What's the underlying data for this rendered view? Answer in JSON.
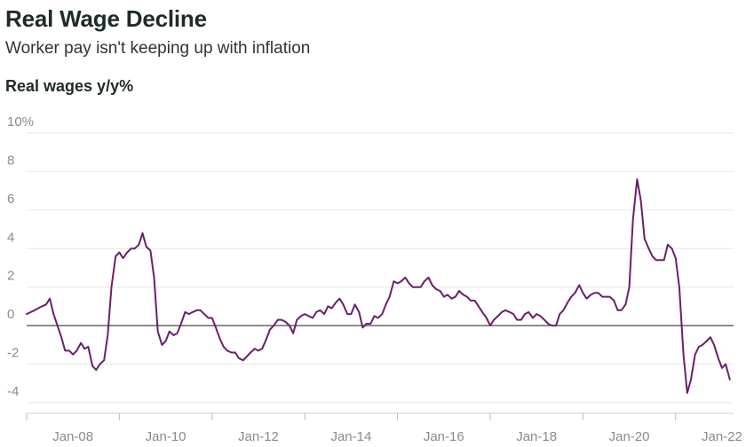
{
  "header": {
    "title": "Real Wage Decline",
    "subtitle": "Worker pay isn't keeping up with inflation",
    "ylabel": "Real wages y/y%"
  },
  "chart_data": {
    "type": "line",
    "title": "Real Wage Decline",
    "subtitle": "Worker pay isn't keeping up with inflation",
    "ylabel": "Real wages y/y%",
    "xlabel": "",
    "ylim": [
      -4,
      10
    ],
    "xlim": [
      2007.0,
      2022.25
    ],
    "yticks": [
      -4,
      -2,
      0,
      2,
      4,
      6,
      8,
      10
    ],
    "ytick_labels": [
      "-4",
      "-2",
      "0",
      "2",
      "4",
      "6",
      "8",
      "10%"
    ],
    "xticks": [
      2008,
      2010,
      2012,
      2014,
      2016,
      2018,
      2020,
      2022
    ],
    "xtick_labels": [
      "Jan-08",
      "Jan-10",
      "Jan-12",
      "Jan-14",
      "Jan-16",
      "Jan-18",
      "Jan-20",
      "Jan-22"
    ],
    "grid": true,
    "line_color": "#6b1f6b",
    "zero_line_color": "#666666",
    "series": [
      {
        "points": [
          [
            2007.0,
            0.6
          ],
          [
            2007.17,
            0.8
          ],
          [
            2007.33,
            1.0
          ],
          [
            2007.42,
            1.1
          ],
          [
            2007.5,
            1.4
          ],
          [
            2007.58,
            0.6
          ],
          [
            2007.75,
            -0.6
          ],
          [
            2007.83,
            -1.3
          ],
          [
            2007.92,
            -1.3
          ],
          [
            2008.0,
            -1.5
          ],
          [
            2008.08,
            -1.3
          ],
          [
            2008.17,
            -0.9
          ],
          [
            2008.25,
            -1.2
          ],
          [
            2008.33,
            -1.1
          ],
          [
            2008.42,
            -2.1
          ],
          [
            2008.5,
            -2.3
          ],
          [
            2008.58,
            -2.0
          ],
          [
            2008.67,
            -1.8
          ],
          [
            2008.75,
            -0.5
          ],
          [
            2008.83,
            2.0
          ],
          [
            2008.92,
            3.6
          ],
          [
            2009.0,
            3.8
          ],
          [
            2009.08,
            3.5
          ],
          [
            2009.17,
            3.8
          ],
          [
            2009.25,
            4.0
          ],
          [
            2009.33,
            4.0
          ],
          [
            2009.42,
            4.2
          ],
          [
            2009.5,
            4.8
          ],
          [
            2009.58,
            4.1
          ],
          [
            2009.67,
            3.9
          ],
          [
            2009.75,
            2.5
          ],
          [
            2009.83,
            -0.3
          ],
          [
            2009.92,
            -1.0
          ],
          [
            2010.0,
            -0.8
          ],
          [
            2010.08,
            -0.3
          ],
          [
            2010.17,
            -0.5
          ],
          [
            2010.25,
            -0.4
          ],
          [
            2010.33,
            0.1
          ],
          [
            2010.42,
            0.7
          ],
          [
            2010.5,
            0.6
          ],
          [
            2010.58,
            0.7
          ],
          [
            2010.67,
            0.8
          ],
          [
            2010.75,
            0.8
          ],
          [
            2010.83,
            0.6
          ],
          [
            2010.92,
            0.4
          ],
          [
            2011.0,
            0.4
          ],
          [
            2011.08,
            -0.1
          ],
          [
            2011.17,
            -0.7
          ],
          [
            2011.25,
            -1.1
          ],
          [
            2011.33,
            -1.3
          ],
          [
            2011.42,
            -1.4
          ],
          [
            2011.5,
            -1.4
          ],
          [
            2011.58,
            -1.7
          ],
          [
            2011.67,
            -1.8
          ],
          [
            2011.75,
            -1.6
          ],
          [
            2011.83,
            -1.4
          ],
          [
            2011.92,
            -1.2
          ],
          [
            2012.0,
            -1.3
          ],
          [
            2012.08,
            -1.2
          ],
          [
            2012.17,
            -0.7
          ],
          [
            2012.25,
            -0.2
          ],
          [
            2012.33,
            0.0
          ],
          [
            2012.42,
            0.3
          ],
          [
            2012.5,
            0.3
          ],
          [
            2012.58,
            0.2
          ],
          [
            2012.67,
            0.0
          ],
          [
            2012.75,
            -0.4
          ],
          [
            2012.83,
            0.3
          ],
          [
            2012.92,
            0.5
          ],
          [
            2013.0,
            0.6
          ],
          [
            2013.08,
            0.5
          ],
          [
            2013.17,
            0.4
          ],
          [
            2013.25,
            0.7
          ],
          [
            2013.33,
            0.8
          ],
          [
            2013.42,
            0.6
          ],
          [
            2013.5,
            1.0
          ],
          [
            2013.58,
            0.9
          ],
          [
            2013.67,
            1.2
          ],
          [
            2013.75,
            1.4
          ],
          [
            2013.83,
            1.1
          ],
          [
            2013.92,
            0.6
          ],
          [
            2014.0,
            0.6
          ],
          [
            2014.08,
            1.1
          ],
          [
            2014.17,
            0.7
          ],
          [
            2014.25,
            -0.1
          ],
          [
            2014.33,
            0.1
          ],
          [
            2014.42,
            0.1
          ],
          [
            2014.5,
            0.5
          ],
          [
            2014.58,
            0.4
          ],
          [
            2014.67,
            0.6
          ],
          [
            2014.75,
            1.1
          ],
          [
            2014.83,
            1.5
          ],
          [
            2014.92,
            2.3
          ],
          [
            2015.0,
            2.2
          ],
          [
            2015.08,
            2.3
          ],
          [
            2015.17,
            2.5
          ],
          [
            2015.25,
            2.2
          ],
          [
            2015.33,
            2.0
          ],
          [
            2015.42,
            2.0
          ],
          [
            2015.5,
            2.0
          ],
          [
            2015.58,
            2.3
          ],
          [
            2015.67,
            2.5
          ],
          [
            2015.75,
            2.1
          ],
          [
            2015.83,
            1.9
          ],
          [
            2015.92,
            1.8
          ],
          [
            2016.0,
            1.5
          ],
          [
            2016.08,
            1.6
          ],
          [
            2016.17,
            1.4
          ],
          [
            2016.25,
            1.5
          ],
          [
            2016.33,
            1.8
          ],
          [
            2016.42,
            1.6
          ],
          [
            2016.5,
            1.5
          ],
          [
            2016.58,
            1.3
          ],
          [
            2016.67,
            1.3
          ],
          [
            2016.75,
            1.0
          ],
          [
            2016.83,
            0.7
          ],
          [
            2016.92,
            0.4
          ],
          [
            2017.0,
            0.0
          ],
          [
            2017.08,
            0.3
          ],
          [
            2017.17,
            0.5
          ],
          [
            2017.25,
            0.7
          ],
          [
            2017.33,
            0.8
          ],
          [
            2017.42,
            0.7
          ],
          [
            2017.5,
            0.6
          ],
          [
            2017.58,
            0.3
          ],
          [
            2017.67,
            0.3
          ],
          [
            2017.75,
            0.6
          ],
          [
            2017.83,
            0.7
          ],
          [
            2017.92,
            0.4
          ],
          [
            2018.0,
            0.6
          ],
          [
            2018.08,
            0.5
          ],
          [
            2018.17,
            0.3
          ],
          [
            2018.25,
            0.1
          ],
          [
            2018.33,
            0.0
          ],
          [
            2018.42,
            0.0
          ],
          [
            2018.5,
            0.6
          ],
          [
            2018.58,
            0.8
          ],
          [
            2018.67,
            1.2
          ],
          [
            2018.75,
            1.5
          ],
          [
            2018.83,
            1.7
          ],
          [
            2018.92,
            2.1
          ],
          [
            2019.0,
            1.7
          ],
          [
            2019.08,
            1.4
          ],
          [
            2019.17,
            1.6
          ],
          [
            2019.25,
            1.7
          ],
          [
            2019.33,
            1.7
          ],
          [
            2019.42,
            1.5
          ],
          [
            2019.5,
            1.5
          ],
          [
            2019.58,
            1.5
          ],
          [
            2019.67,
            1.3
          ],
          [
            2019.75,
            0.8
          ],
          [
            2019.83,
            0.8
          ],
          [
            2019.92,
            1.1
          ],
          [
            2020.0,
            2.0
          ],
          [
            2020.08,
            5.5
          ],
          [
            2020.17,
            7.6
          ],
          [
            2020.25,
            6.5
          ],
          [
            2020.33,
            4.5
          ],
          [
            2020.42,
            4.0
          ],
          [
            2020.5,
            3.6
          ],
          [
            2020.58,
            3.4
          ],
          [
            2020.67,
            3.4
          ],
          [
            2020.75,
            3.4
          ],
          [
            2020.83,
            4.2
          ],
          [
            2020.92,
            4.0
          ],
          [
            2021.0,
            3.5
          ],
          [
            2021.08,
            2.0
          ],
          [
            2021.17,
            -1.5
          ],
          [
            2021.25,
            -3.5
          ],
          [
            2021.33,
            -2.8
          ],
          [
            2021.42,
            -1.5
          ],
          [
            2021.5,
            -1.1
          ],
          [
            2021.58,
            -1.0
          ],
          [
            2021.67,
            -0.8
          ],
          [
            2021.75,
            -0.6
          ],
          [
            2021.83,
            -1.0
          ],
          [
            2021.92,
            -1.7
          ],
          [
            2022.0,
            -2.2
          ],
          [
            2022.08,
            -2.0
          ],
          [
            2022.17,
            -2.8
          ]
        ]
      }
    ]
  }
}
